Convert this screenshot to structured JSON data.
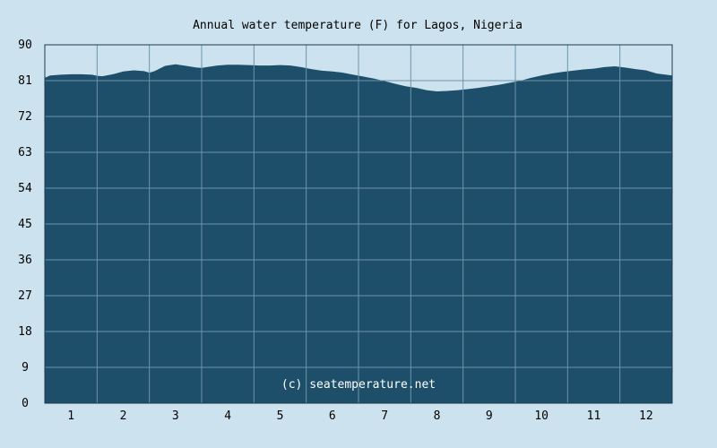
{
  "chart_data": {
    "type": "area",
    "title": "Annual water temperature (F) for Lagos, Nigeria",
    "watermark": "(c) seatemperature.net",
    "ylim": [
      0,
      90
    ],
    "yticks": [
      0,
      9,
      18,
      27,
      36,
      45,
      54,
      63,
      72,
      81,
      90
    ],
    "xlim": [
      0.5,
      12.5
    ],
    "xticks": [
      1,
      2,
      3,
      4,
      5,
      6,
      7,
      8,
      9,
      10,
      11,
      12
    ],
    "grid": true,
    "colors": {
      "background": "#cce3ef",
      "fill": "#1e4f6a",
      "grid": "#6d93aa",
      "axis": "#1b3a4c"
    },
    "series": [
      {
        "x": [
          0.5,
          0.6,
          0.8,
          1.0,
          1.2,
          1.4,
          1.5,
          1.6,
          1.8,
          2.0,
          2.2,
          2.4,
          2.5,
          2.6,
          2.8,
          3.0,
          3.2,
          3.4,
          3.5,
          3.6,
          3.8,
          4.0,
          4.2,
          4.4,
          4.6,
          4.8,
          5.0,
          5.2,
          5.4,
          5.6,
          5.8,
          6.0,
          6.2,
          6.4,
          6.6,
          6.8,
          7.0,
          7.2,
          7.4,
          7.6,
          7.8,
          8.0,
          8.2,
          8.4,
          8.6,
          8.8,
          9.0,
          9.2,
          9.4,
          9.6,
          9.8,
          10.0,
          10.2,
          10.4,
          10.6,
          10.8,
          11.0,
          11.2,
          11.4,
          11.6,
          11.8,
          12.0,
          12.2,
          12.5
        ],
        "y": [
          81.7,
          82.3,
          82.5,
          82.6,
          82.6,
          82.5,
          82.2,
          82.1,
          82.6,
          83.3,
          83.6,
          83.4,
          83.0,
          83.4,
          84.7,
          85.1,
          84.7,
          84.3,
          84.2,
          84.4,
          84.8,
          85.0,
          85.0,
          84.9,
          84.8,
          84.8,
          84.9,
          84.8,
          84.4,
          83.9,
          83.5,
          83.3,
          83.0,
          82.5,
          82.0,
          81.5,
          80.9,
          80.2,
          79.6,
          79.2,
          78.6,
          78.3,
          78.4,
          78.6,
          78.9,
          79.2,
          79.6,
          80.0,
          80.5,
          81.0,
          81.7,
          82.3,
          82.8,
          83.2,
          83.5,
          83.8,
          84.0,
          84.4,
          84.6,
          84.3,
          83.9,
          83.6,
          82.8,
          82.3
        ]
      }
    ]
  }
}
